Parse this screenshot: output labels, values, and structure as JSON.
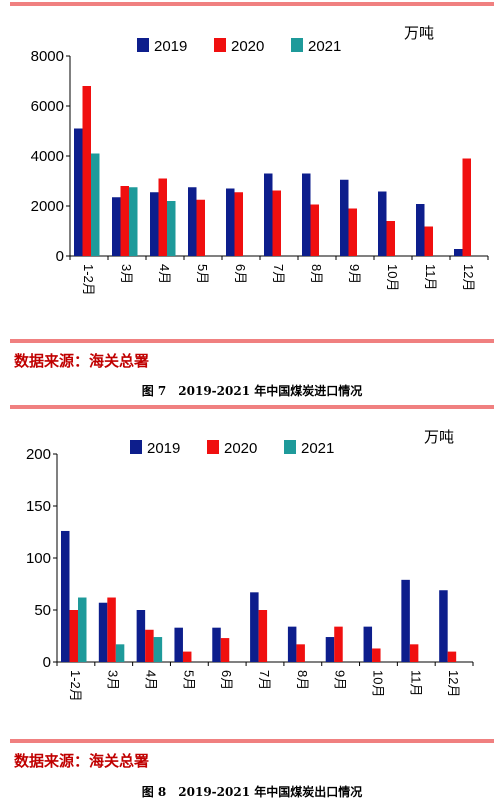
{
  "colors": {
    "2019": "#0d1e8c",
    "2020": "#f00f0f",
    "2021": "#1e9a9a",
    "rule": "#f08080",
    "source": "#c00000"
  },
  "chart_data": [
    {
      "type": "bar",
      "unit": "万吨",
      "categories": [
        "1-2月",
        "3月",
        "4月",
        "5月",
        "6月",
        "7月",
        "8月",
        "9月",
        "10月",
        "11月",
        "12月"
      ],
      "series": [
        {
          "name": "2019",
          "values": [
            5100,
            2350,
            2550,
            2750,
            2700,
            3300,
            3300,
            3050,
            2580,
            2080,
            280
          ]
        },
        {
          "name": "2020",
          "values": [
            6800,
            2800,
            3100,
            2250,
            2550,
            2620,
            2060,
            1900,
            1400,
            1180,
            3900
          ]
        },
        {
          "name": "2021",
          "values": [
            4100,
            2750,
            2200,
            null,
            null,
            null,
            null,
            null,
            null,
            null,
            null
          ]
        }
      ],
      "ylim": [
        0,
        8000
      ],
      "yticks": [
        "0",
        "2000",
        "4000",
        "6000",
        "8000"
      ],
      "legend": "top-center",
      "source": "数据来源：海关总署",
      "caption": "图 7　2019-2021 年中国煤炭进口情况"
    },
    {
      "type": "bar",
      "unit": "万吨",
      "categories": [
        "1-2月",
        "3月",
        "4月",
        "5月",
        "6月",
        "7月",
        "8月",
        "9月",
        "10月",
        "11月",
        "12月"
      ],
      "series": [
        {
          "name": "2019",
          "values": [
            126,
            57,
            50,
            33,
            33,
            67,
            34,
            24,
            34,
            79,
            69
          ]
        },
        {
          "name": "2020",
          "values": [
            50,
            62,
            31,
            10,
            23,
            50,
            17,
            34,
            13,
            17,
            10
          ]
        },
        {
          "name": "2021",
          "values": [
            62,
            17,
            24,
            null,
            null,
            null,
            null,
            null,
            null,
            null,
            null
          ]
        }
      ],
      "ylim": [
        0,
        200
      ],
      "yticks": [
        "0",
        "50",
        "100",
        "150",
        "200"
      ],
      "legend": "top-center",
      "source": "数据来源：海关总署",
      "caption": "图 8　2019-2021 年中国煤炭出口情况"
    }
  ]
}
